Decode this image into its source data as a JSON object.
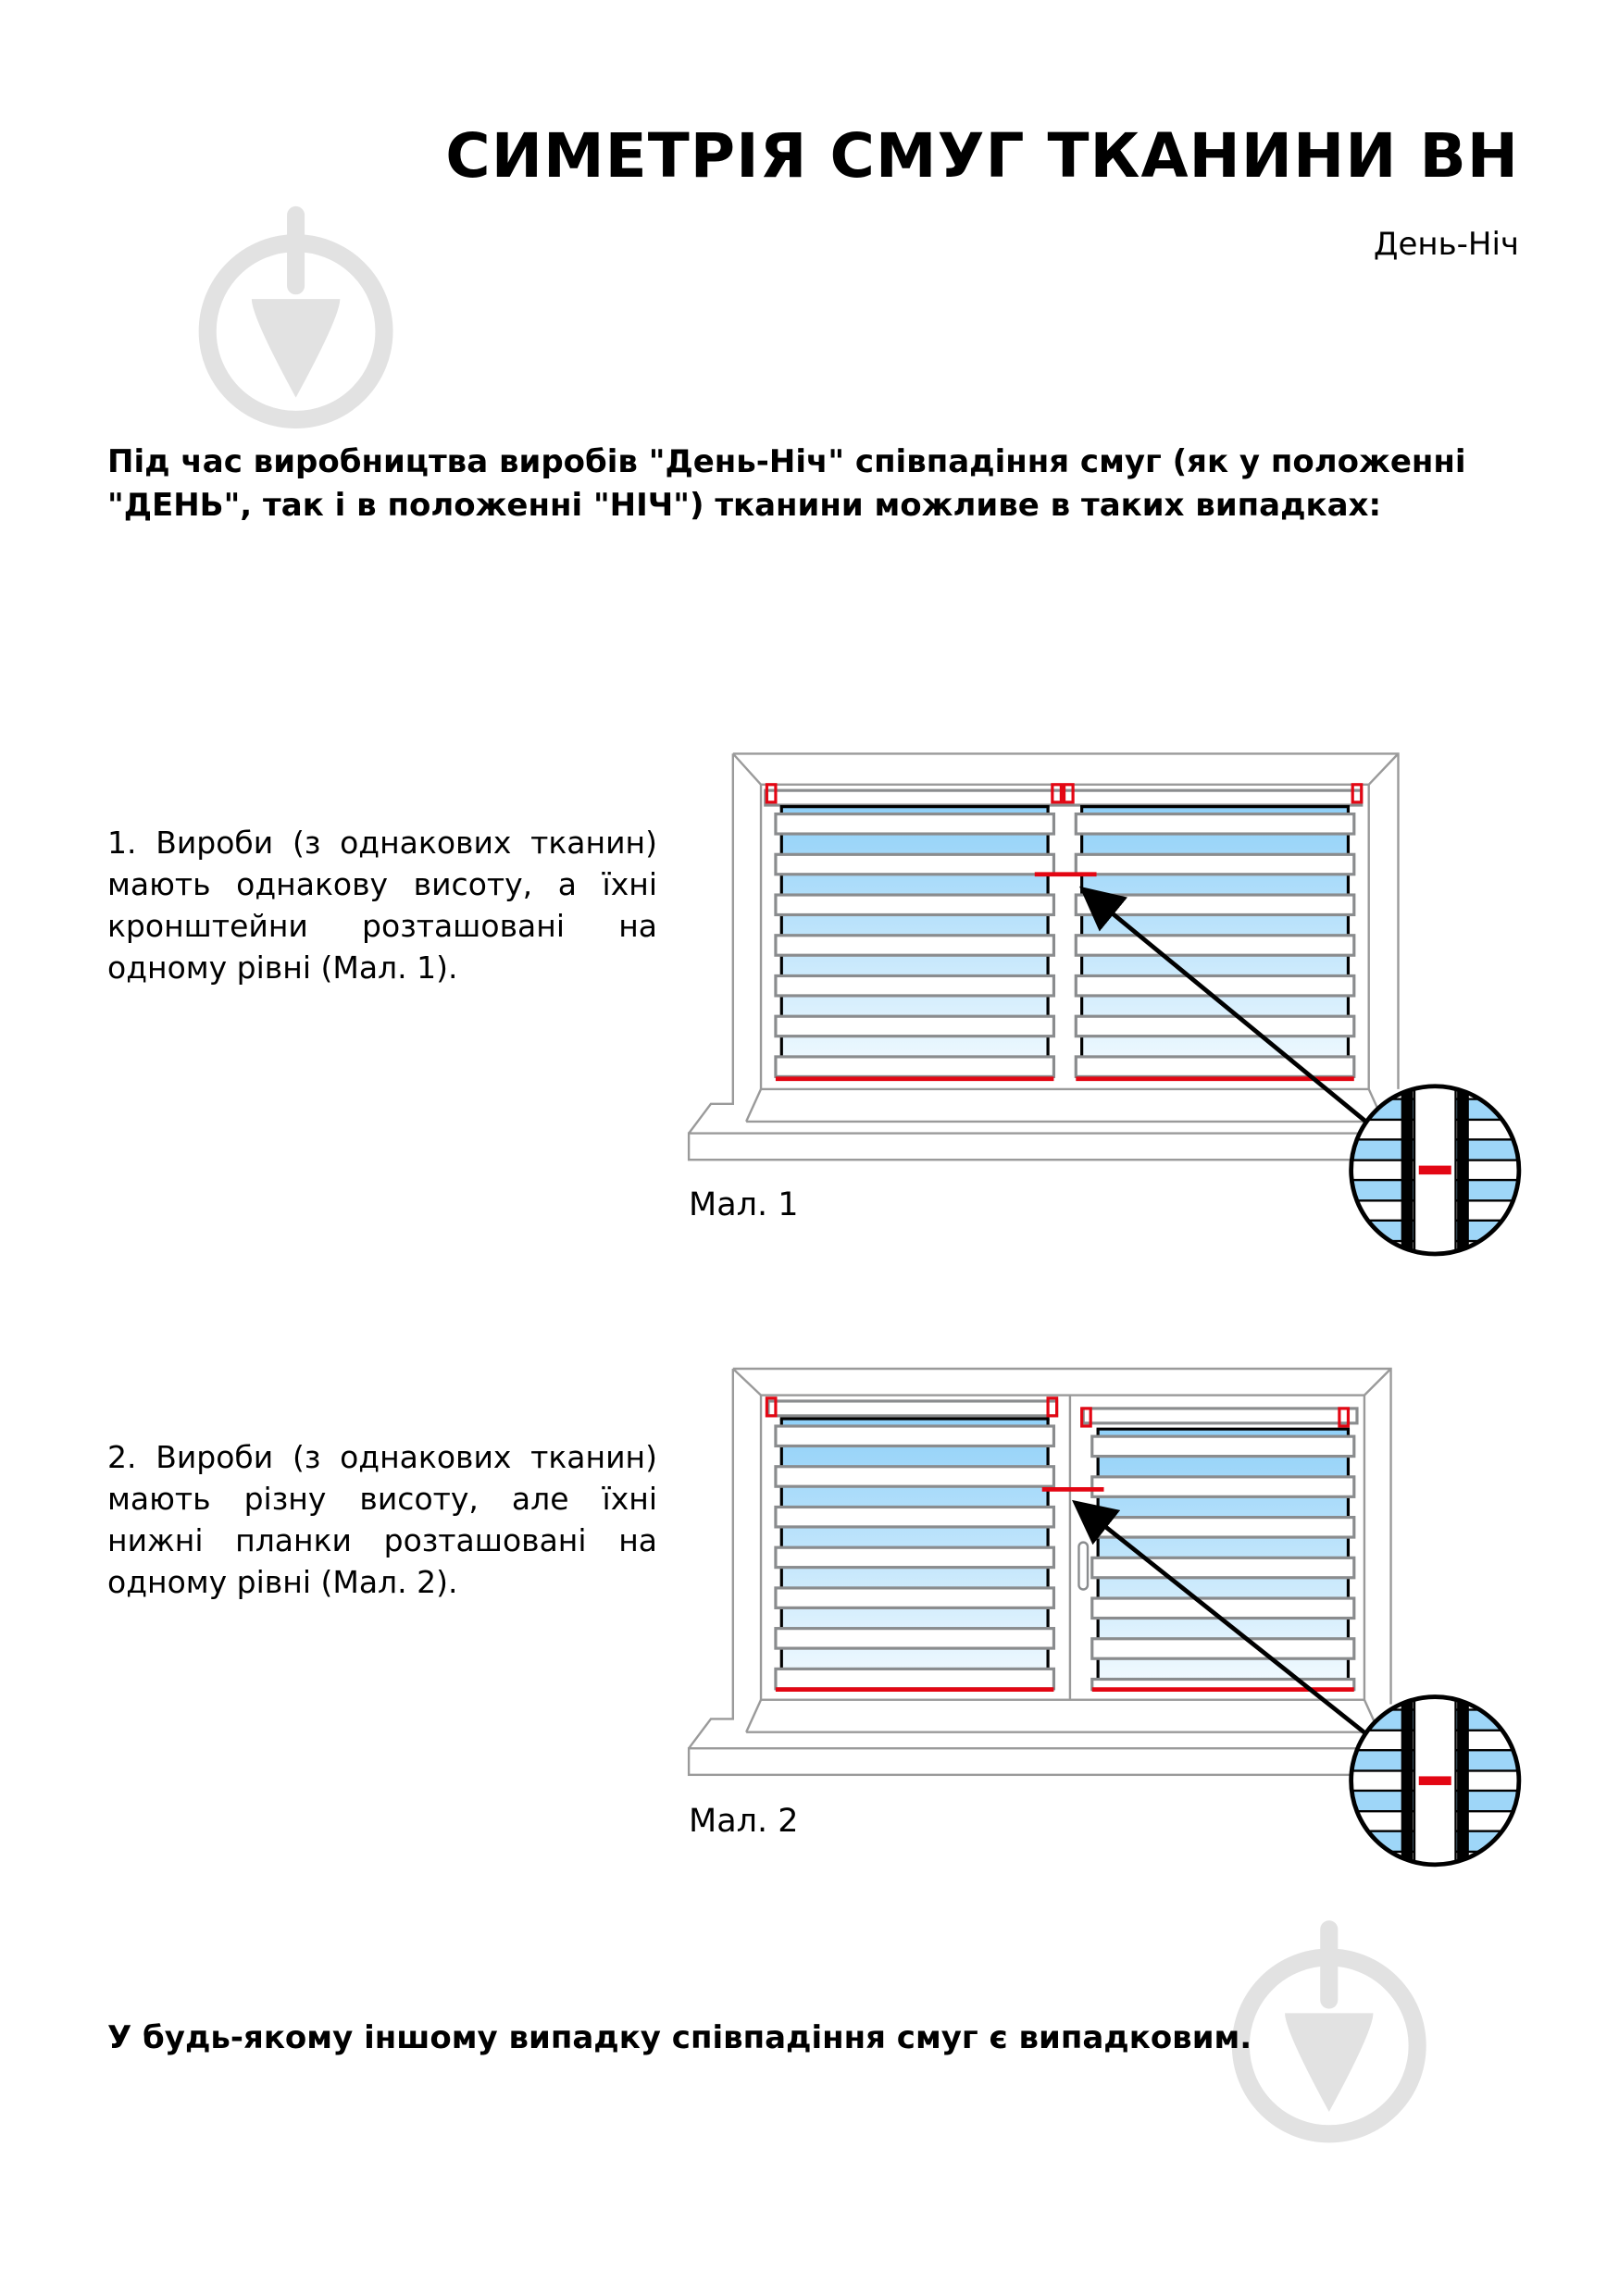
{
  "header": {
    "title": "СИМЕТРІЯ СМУГ ТКАНИНИ ВН",
    "subtitle": "День-Ніч"
  },
  "intro": "Під час виробництва виробів \"День-Ніч\" співпадіння смуг (як у положенні \"ДЕНЬ\", так і в положенні \"НІЧ\") тканини можливе в таких випадках:",
  "cases": [
    {
      "text": "1. Вироби (з однакових тканин) мають однакову висоту, а їхні кронштейни розташовані на одному рівні (Мал. 1).",
      "caption": "Мал. 1"
    },
    {
      "text": "2. Вироби (з однакових тканин) мають різну висоту, але їхні нижні планки розташовані на одному рівні (Мал. 2).",
      "caption": "Мал. 2"
    }
  ],
  "outro": "У будь-якому іншому випадку співпадіння смуг є випадковим.",
  "colors": {
    "accent": "#e30613",
    "fabric_blue": "#9ed6f8",
    "frame_gray": "#8a8c8e",
    "watermark": "#e2e2e2"
  },
  "icons": [
    "watermark-logo-icon",
    "zoom-detail-circle-icon",
    "arrow-icon"
  ]
}
